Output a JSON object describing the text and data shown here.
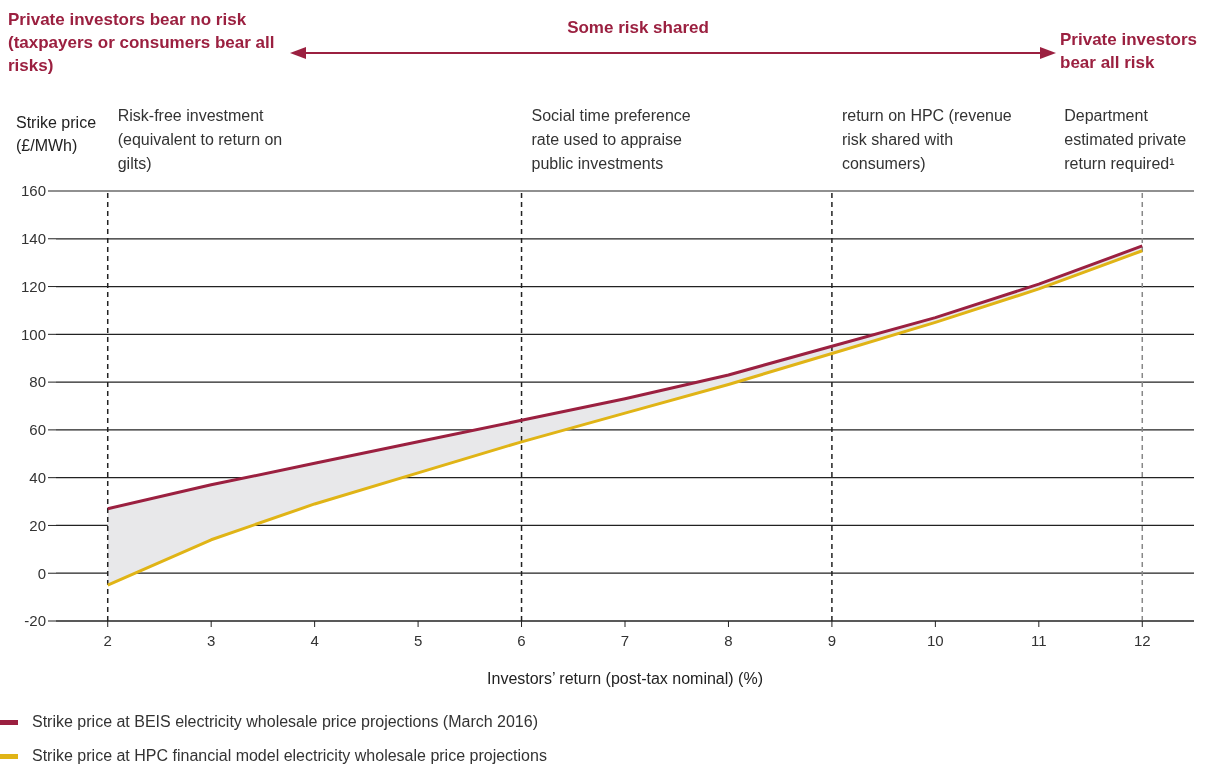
{
  "chart_data": {
    "type": "line",
    "xlabel": "Investors’ return (post-tax nominal) (%)",
    "ylabel": "Strike price (£/MWh)",
    "x": [
      2,
      3,
      4,
      5,
      6,
      7,
      8,
      9,
      10,
      11,
      12
    ],
    "series": [
      {
        "name": "Strike price at BEIS electricity wholesale price projections (March 2016)",
        "color": "#9b2040",
        "values": [
          27,
          37,
          46,
          55,
          64,
          73,
          83,
          95,
          107,
          121,
          137
        ],
        "lower": [
          -5,
          14,
          29,
          42,
          55,
          67,
          79,
          92,
          105,
          119,
          135
        ],
        "upper": [
          27,
          37,
          46,
          55,
          64,
          73,
          83,
          95,
          107,
          121,
          137
        ]
      },
      {
        "name": "Strike price at HPC financial model electricity wholesale price projections",
        "color": "#e0b416",
        "values": [
          -5,
          14,
          29,
          42,
          55,
          67,
          79,
          92,
          105,
          119,
          135
        ]
      }
    ],
    "xlim": [
      1.5,
      12.5
    ],
    "xticks": [
      2,
      3,
      4,
      5,
      6,
      7,
      8,
      9,
      10,
      11,
      12
    ],
    "ylim": [
      -20,
      160
    ],
    "yticks": [
      -20,
      0,
      20,
      40,
      60,
      80,
      100,
      120,
      140,
      160
    ],
    "grid": "y",
    "legend": "bottom left",
    "marker": "none",
    "line_style": "solid",
    "ref_lines": [
      {
        "axis": "x",
        "value": 2,
        "label": "Risk-free investment (equivalent to return on gilts)",
        "color": "#222222",
        "line_style": "dashed"
      },
      {
        "axis": "x",
        "value": 6,
        "label": "Social time preference rate used to appraise public investments",
        "color": "#222222",
        "line_style": "dashed"
      },
      {
        "axis": "x",
        "value": 9,
        "label": "return on HPC (revenue risk shared with consumers)",
        "color": "#222222",
        "line_style": "dashed"
      },
      {
        "axis": "x",
        "value": 12,
        "label": "Department estimated private return required¹",
        "color": "#888888",
        "line_style": "dashed"
      }
    ],
    "annotations": [
      "Private investors bear no risk (taxpayers or consumers bear all risks)",
      "Some risk shared",
      "Private investors bear all risk"
    ]
  }
}
